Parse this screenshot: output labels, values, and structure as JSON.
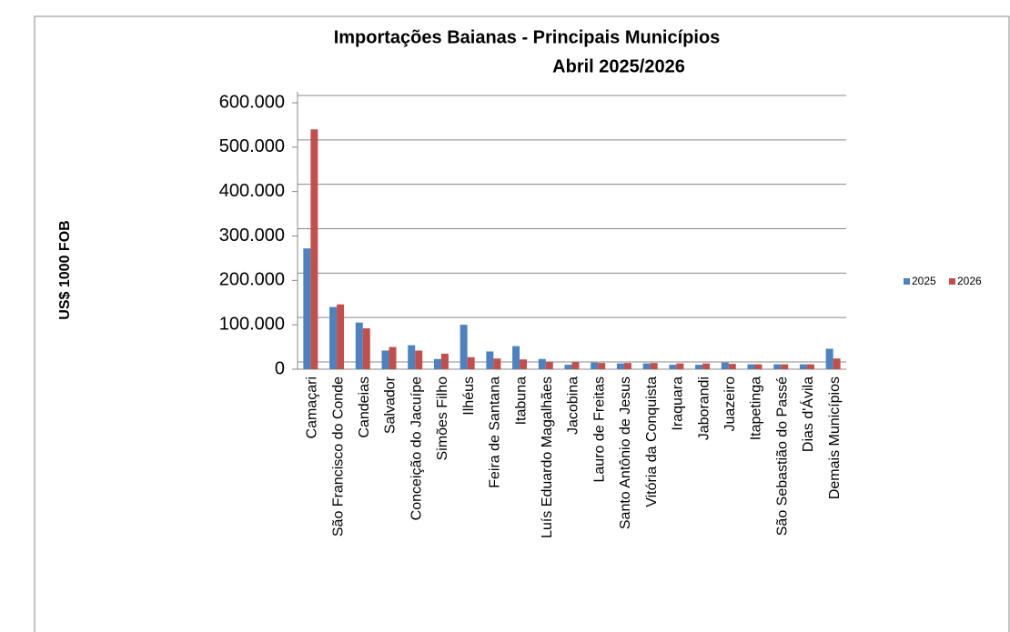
{
  "chart_data": {
    "type": "bar",
    "title": "Importações Baianas - Principais Municípios",
    "subtitle": "Abril 2025/2026",
    "y_label": "US$ 1000 FOB",
    "categories": [
      "Camaçari",
      "São Francisco do Conde",
      "Candeias",
      "Salvador",
      "Conceição do Jacuípe",
      "Simões Filho",
      "Ilhéus",
      "Feira de Santana",
      "Itabuna",
      "Luís Eduardo Magalhães",
      "Jacobina",
      "Lauro de Freitas",
      "Santo Antônio de Jesus",
      "Vitória da Conquista",
      "Iraquara",
      "Jaborandi",
      "Juazeiro",
      "Itapetinga",
      "São Sebastião do Passé",
      "Dias d'Ávila",
      "Demais Municípios"
    ],
    "series": [
      {
        "name": "2025",
        "color": "#4f81bd",
        "values": [
          272000,
          140000,
          105000,
          42000,
          54000,
          23000,
          100000,
          40000,
          52000,
          23000,
          10000,
          15000,
          13000,
          13000,
          10000,
          10000,
          15000,
          11000,
          11000,
          11000,
          46000
        ]
      },
      {
        "name": "2026",
        "color": "#c0504d",
        "values": [
          540000,
          146000,
          92000,
          50000,
          42000,
          35000,
          27000,
          24000,
          22000,
          17000,
          16000,
          14000,
          14000,
          14000,
          13000,
          13000,
          12000,
          11000,
          11000,
          11000,
          24000
        ]
      }
    ],
    "ylim": [
      0,
      600000
    ],
    "yticks": [
      0,
      {
        "value": 100000,
        "label": "100.000"
      },
      {
        "value": 200000,
        "label": "200.000"
      },
      {
        "value": 300000,
        "label": "300.000"
      },
      {
        "value": 400000,
        "label": "400.000"
      },
      {
        "value": 500000,
        "label": "500.000"
      },
      {
        "value": 600000,
        "label": "600.000"
      }
    ],
    "grid": true,
    "legend": "right"
  }
}
